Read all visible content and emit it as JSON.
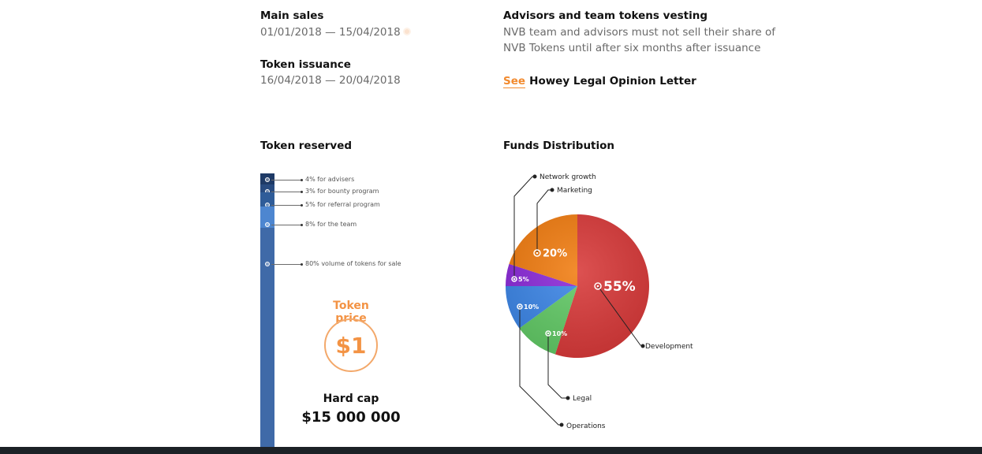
{
  "sections": {
    "main_sales": {
      "title": "Main sales",
      "dates": "01/01/2018 — 15/04/2018"
    },
    "token_issuance": {
      "title": "Token issuance",
      "dates": "16/04/2018 — 20/04/2018"
    },
    "vesting": {
      "title": "Advisors and team tokens vesting",
      "line1": "NVB team and advisors must not sell their share of",
      "line2": "NVB Tokens until after six months after issuance",
      "see_label": "See",
      "link_label": "Howey Legal Opinion Letter"
    }
  },
  "token_reserved": {
    "title": "Token reserved",
    "items": [
      {
        "label": "4% for advisers",
        "value": 4,
        "color": "#1e3a66"
      },
      {
        "label": "3% for bounty program",
        "value": 3,
        "color": "#284b80"
      },
      {
        "label": "5% for referral program",
        "value": 5,
        "color": "#2f5c99"
      },
      {
        "label": "8% for the team",
        "value": 8,
        "color": "#4d86d0"
      },
      {
        "label": "80% volume of tokens for sale",
        "value": 80,
        "color": "#3f6aa8"
      }
    ]
  },
  "token_price": {
    "title": "Token price",
    "value": "$1"
  },
  "hard_cap": {
    "title": "Hard cap",
    "value": "$15 000 000"
  },
  "chart_data": {
    "type": "pie",
    "title": "Funds Distribution",
    "slices": [
      {
        "name": "Development",
        "value": 55,
        "label": "55%",
        "color": "#d83a3a"
      },
      {
        "name": "Legal",
        "value": 10,
        "label": "10%",
        "color": "#62c966"
      },
      {
        "name": "Operations",
        "value": 10,
        "label": "10%",
        "color": "#3d86e6"
      },
      {
        "name": "Network growth",
        "value": 5,
        "label": "5%",
        "color": "#8b2bd8"
      },
      {
        "name": "Marketing",
        "value": 20,
        "label": "20%",
        "color": "#f17d12"
      }
    ]
  }
}
